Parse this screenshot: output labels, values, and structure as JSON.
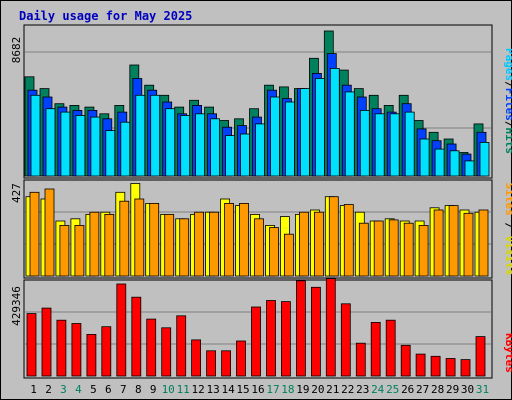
{
  "chart_data": {
    "type": "bar",
    "title": "Daily usage for May 2025",
    "categories": [
      "1",
      "2",
      "3",
      "4",
      "5",
      "6",
      "7",
      "8",
      "9",
      "10",
      "11",
      "12",
      "13",
      "14",
      "15",
      "16",
      "17",
      "18",
      "19",
      "20",
      "21",
      "22",
      "23",
      "24",
      "25",
      "26",
      "27",
      "28",
      "29",
      "30",
      "31"
    ],
    "weekend_days": [
      "3",
      "4",
      "10",
      "11",
      "17",
      "18",
      "24",
      "25",
      "31"
    ],
    "panels": [
      {
        "name": "hits-files-pages",
        "ymax": 8682,
        "ymax_label": "8682",
        "axis_labels": [
          "Pages",
          "Files",
          "Hits"
        ],
        "series": [
          {
            "name": "Hits",
            "color": "#00805c",
            "values": [
              5900,
              5200,
              4300,
              4200,
              4100,
              3700,
              4200,
              6600,
              5400,
              4800,
              4100,
              4500,
              4100,
              3300,
              3400,
              4000,
              5400,
              5300,
              5200,
              7000,
              8620,
              6300,
              5200,
              4800,
              4200,
              4800,
              3300,
              2600,
              2200,
              1400,
              3100
            ]
          },
          {
            "name": "Files",
            "color": "#0040ff",
            "values": [
              5100,
              4700,
              4100,
              3900,
              3900,
              3400,
              3800,
              5800,
              5100,
              4400,
              3700,
              4200,
              3700,
              2900,
              3000,
              3500,
              5100,
              4600,
              5200,
              6100,
              7280,
              5400,
              4700,
              4000,
              3800,
              4300,
              2800,
              2100,
              1900,
              1300,
              2600
            ]
          },
          {
            "name": "Pages",
            "color": "#00e0ff",
            "values": [
              4800,
              4000,
              3800,
              3600,
              3500,
              2700,
              3200,
              4800,
              4800,
              4000,
              3600,
              3700,
              3400,
              2400,
              2500,
              3100,
              4700,
              4400,
              5200,
              5800,
              6400,
              5000,
              3900,
              3700,
              3700,
              3800,
              2200,
              1600,
              1500,
              900,
              2000
            ]
          }
        ]
      },
      {
        "name": "sites-visits",
        "ymax": 427,
        "ymax_label": "427",
        "axis_labels": [
          "Sites",
          "Visits"
        ],
        "series": [
          {
            "name": "Visits",
            "color": "#ffff00",
            "values": [
              360,
              350,
              250,
              260,
              280,
              290,
              380,
              420,
              330,
              280,
              260,
              280,
              290,
              350,
              320,
              280,
              230,
              270,
              280,
              300,
              360,
              320,
              290,
              250,
              260,
              250,
              250,
              310,
              320,
              300,
              290
            ]
          },
          {
            "name": "Sites",
            "color": "#ff9900",
            "values": [
              380,
              395,
              230,
              230,
              290,
              280,
              340,
              350,
              330,
              280,
              260,
              290,
              290,
              330,
              330,
              260,
              220,
              190,
              290,
              290,
              360,
              325,
              240,
              250,
              255,
              240,
              230,
              300,
              320,
              285,
              300
            ]
          }
        ]
      },
      {
        "name": "kbytes",
        "ymax": 429346,
        "ymax_label": "429346",
        "axis_labels": [
          "KBytes"
        ],
        "series": [
          {
            "name": "KBytes",
            "color": "#ff0000",
            "values": [
              285000,
              310000,
              255000,
              240000,
              190000,
              225000,
              420000,
              360000,
              260000,
              220000,
              275000,
              165000,
              115000,
              115000,
              160000,
              315000,
              345000,
              340000,
              435000,
              405000,
              445000,
              330000,
              150000,
              245000,
              255000,
              140000,
              100000,
              90000,
              80000,
              75000,
              180000
            ]
          }
        ]
      }
    ]
  }
}
